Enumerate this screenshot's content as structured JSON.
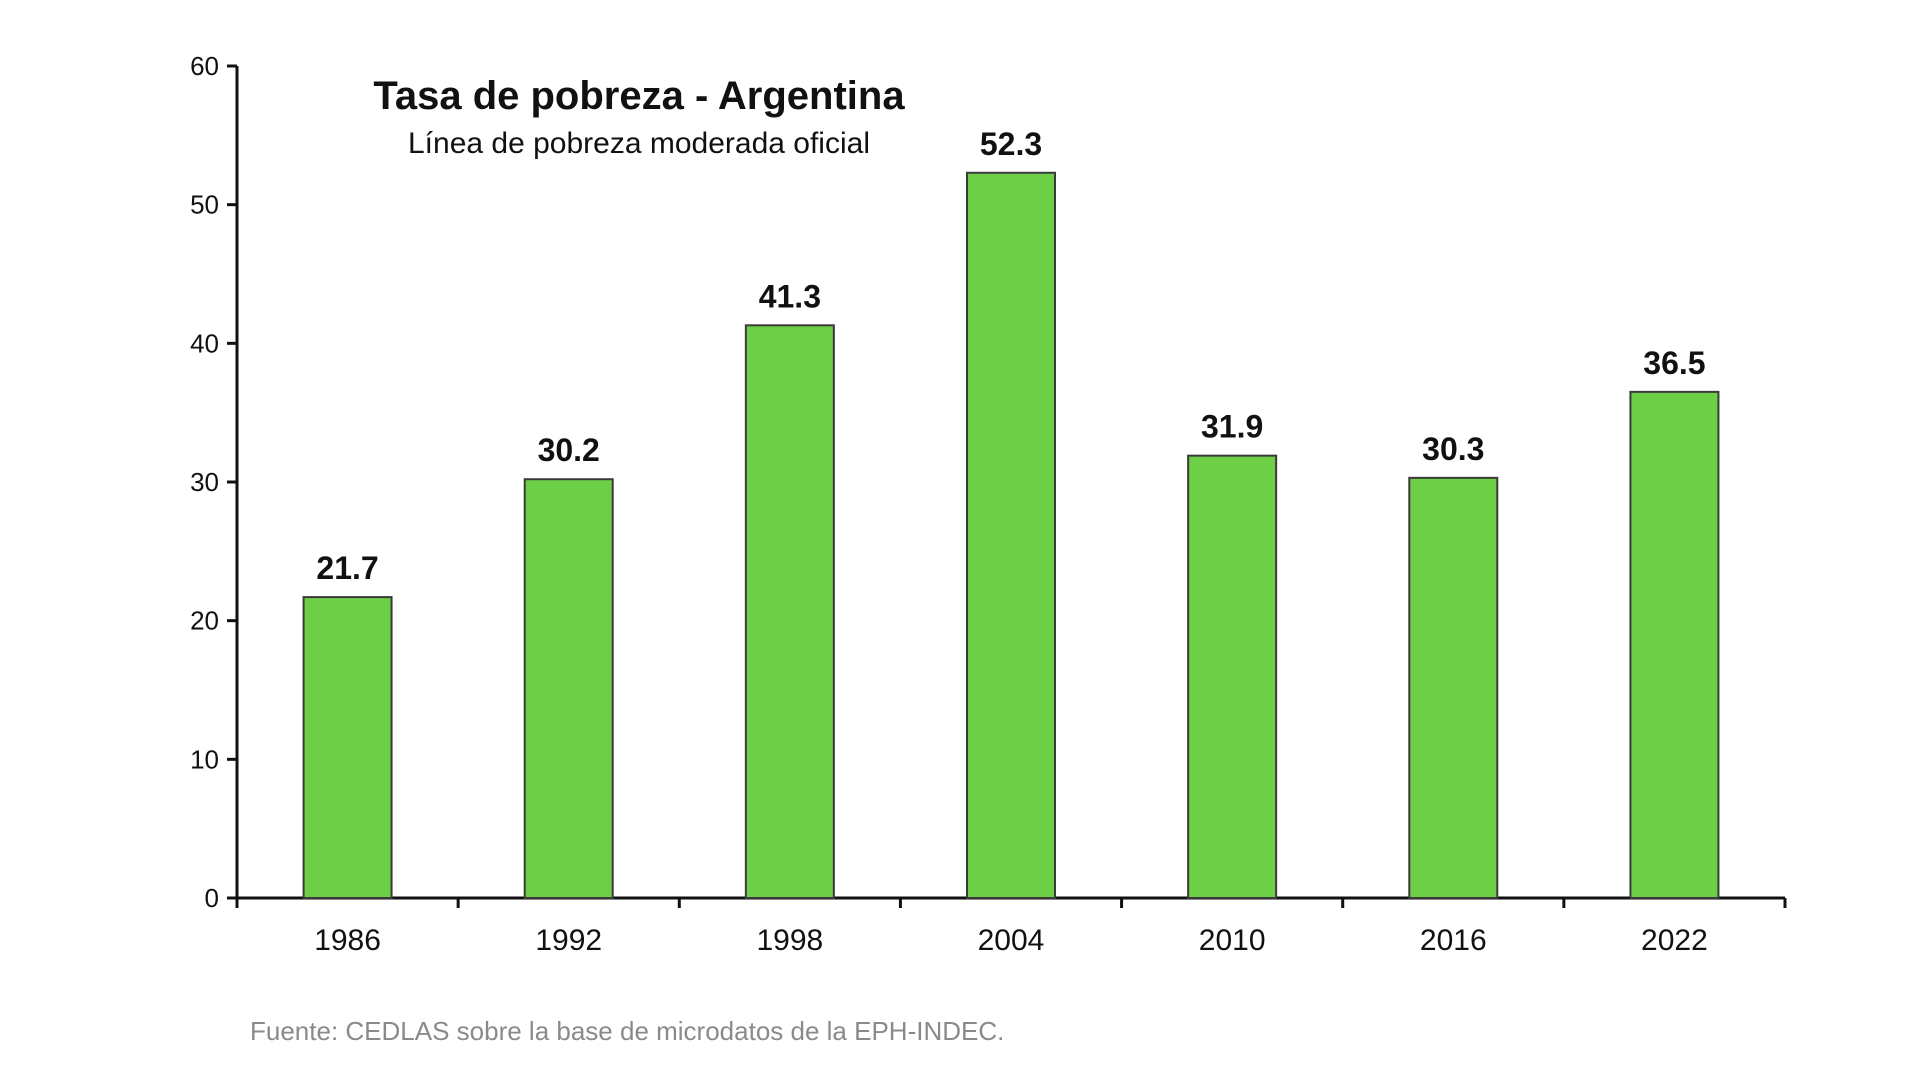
{
  "chart_data": {
    "type": "bar",
    "title": "Tasa de pobreza - Argentina",
    "subtitle": "Línea de pobreza moderada oficial",
    "categories": [
      "1986",
      "1992",
      "1998",
      "2004",
      "2010",
      "2016",
      "2022"
    ],
    "values": [
      21.7,
      30.2,
      41.3,
      52.3,
      31.9,
      30.3,
      36.5
    ],
    "data_labels": [
      "21.7",
      "30.2",
      "41.3",
      "52.3",
      "31.9",
      "30.3",
      "36.5"
    ],
    "y_ticks": [
      "0",
      "10",
      "20",
      "30",
      "40",
      "50",
      "60"
    ],
    "ylim": [
      0,
      60
    ],
    "xlabel": "",
    "ylabel": "",
    "grid": false,
    "legend": "none",
    "source": "Fuente: CEDLAS sobre la base de microdatos de la EPH-INDEC.",
    "colors": {
      "bar_fill": "#6ccf45",
      "bar_stroke": "#3a3a3a",
      "axis": "#111111",
      "text": "#111111",
      "source_text": "#8a8a8a"
    }
  }
}
